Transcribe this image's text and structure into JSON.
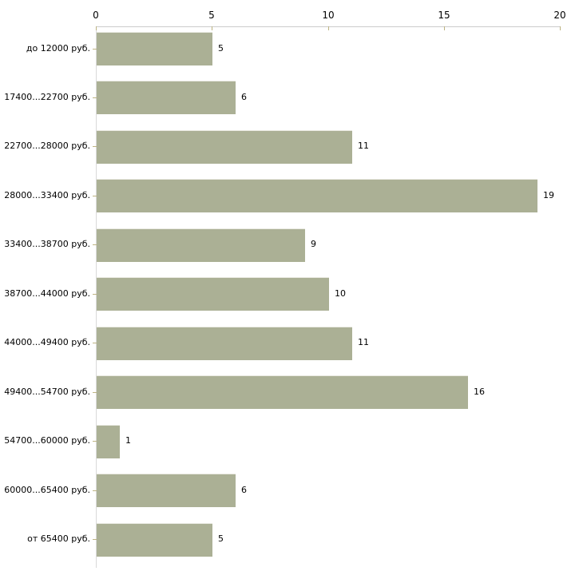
{
  "chart_data": {
    "type": "bar",
    "orientation": "horizontal",
    "title": "",
    "xlabel": "",
    "ylabel": "",
    "categories": [
      "до 12000 руб.",
      "17400...22700 руб.",
      "22700...28000 руб.",
      "28000...33400 руб.",
      "33400...38700 руб.",
      "38700...44000 руб.",
      "44000...49400 руб.",
      "49400...54700 руб.",
      "54700...60000 руб.",
      "60000...65400 руб.",
      "от 65400 руб."
    ],
    "values": [
      5,
      6,
      11,
      19,
      9,
      10,
      11,
      16,
      1,
      6,
      5
    ],
    "x_ticks": [
      "0",
      "5",
      "10",
      "15",
      "20"
    ],
    "x_tick_values": [
      0,
      5,
      10,
      15,
      20
    ],
    "xlim": [
      0,
      20
    ],
    "axis_position": "top",
    "grid": false,
    "legend": false,
    "data_labels": true,
    "colors": {
      "bar_fill": "#abb095",
      "bar_edge": "#e9e9e1",
      "axis_line": "#cccccc",
      "y_axis_line": "#d9d9d9",
      "tick_mark": "#bdb382",
      "text": "#000000",
      "background": "#ffffff"
    }
  }
}
